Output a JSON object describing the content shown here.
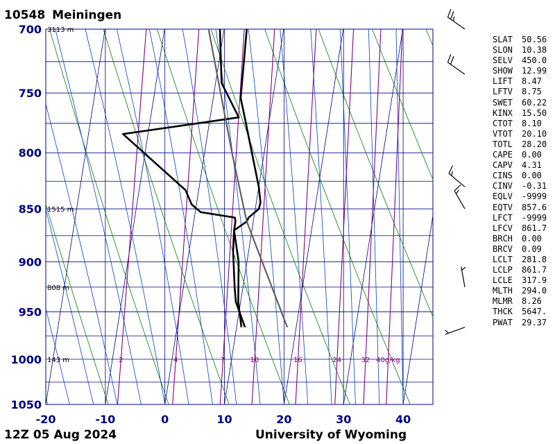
{
  "station": {
    "id": "10548",
    "name": "Meiningen"
  },
  "footer": {
    "time": "12Z 05 Aug 2024",
    "source": "University of Wyoming"
  },
  "indices": [
    {
      "k": "SLAT",
      "v": "50.56"
    },
    {
      "k": "SLON",
      "v": "10.38"
    },
    {
      "k": "SELV",
      "v": "450.0"
    },
    {
      "k": "SHOW",
      "v": "12.99"
    },
    {
      "k": "LIFT",
      "v": "8.47"
    },
    {
      "k": "LFTV",
      "v": "8.75"
    },
    {
      "k": "SWET",
      "v": "60.22"
    },
    {
      "k": "KINX",
      "v": "15.50"
    },
    {
      "k": "CTOT",
      "v": "8.10"
    },
    {
      "k": "VTOT",
      "v": "20.10"
    },
    {
      "k": "TOTL",
      "v": "28.20"
    },
    {
      "k": "CAPE",
      "v": "0.00"
    },
    {
      "k": "CAPV",
      "v": "4.31"
    },
    {
      "k": "CINS",
      "v": "0.00"
    },
    {
      "k": "CINV",
      "v": "-0.31"
    },
    {
      "k": "EQLV",
      "v": "-9999"
    },
    {
      "k": "EQTV",
      "v": "857.6"
    },
    {
      "k": "LFCT",
      "v": "-9999"
    },
    {
      "k": "LFCV",
      "v": "861.7"
    },
    {
      "k": "BRCH",
      "v": "0.00"
    },
    {
      "k": "BRCV",
      "v": "0.09"
    },
    {
      "k": "LCLT",
      "v": "281.8"
    },
    {
      "k": "LCLP",
      "v": "861.7"
    },
    {
      "k": "LCLE",
      "v": "317.9"
    },
    {
      "k": "MLTH",
      "v": "294.0"
    },
    {
      "k": "MLMR",
      "v": "8.26"
    },
    {
      "k": "THCK",
      "v": "5647."
    },
    {
      "k": "PWAT",
      "v": "29.37"
    }
  ],
  "chart_data": {
    "type": "line",
    "subtype": "skew-T log-p sounding",
    "x_ticks": [
      "-20",
      "-10",
      "0",
      "10",
      "20",
      "30",
      "40"
    ],
    "x_range": [
      -20,
      45
    ],
    "y_ticks": [
      "700",
      "750",
      "800",
      "850",
      "900",
      "950",
      "1000",
      "1050"
    ],
    "y_range": [
      700,
      1050
    ],
    "y_scale": "log",
    "height_labels": [
      {
        "p": 700,
        "text": "3113 m"
      },
      {
        "p": 850,
        "text": "1515 m"
      },
      {
        "p": 925,
        "text": "808 m"
      },
      {
        "p": 1000,
        "text": "143 m"
      }
    ],
    "mixing_ratio_labels": [
      "2",
      "4",
      "7",
      "10",
      "16",
      "24",
      "32",
      "40g/kg"
    ],
    "mixing_ratio_values": [
      2,
      4,
      7,
      10,
      16,
      24,
      32,
      40
    ],
    "colors": {
      "grid": "#000080",
      "isotherm": "#000080",
      "dry_adiabat": "#008000",
      "moist_adiabat": "#0040c0",
      "mixing_ratio": "#800080",
      "temperature": "#000000",
      "dewpoint": "#000000",
      "parcel": "#606060",
      "wind": "#000000",
      "label": "#000080"
    },
    "series": [
      {
        "role": "temperature",
        "points": [
          [
            966,
            11.4
          ],
          [
            940,
            9.2
          ],
          [
            925,
            8.6
          ],
          [
            890,
            7.4
          ],
          [
            870,
            7.0
          ],
          [
            861.7,
            8.9
          ],
          [
            858,
            9.1
          ],
          [
            850,
            10.6
          ],
          [
            844,
            10.7
          ],
          [
            830,
            10.0
          ],
          [
            770,
            5.8
          ],
          [
            754,
            4.6
          ],
          [
            700,
            3.8
          ]
        ]
      },
      {
        "role": "dewpoint",
        "points": [
          [
            966,
            10.8
          ],
          [
            940,
            9.6
          ],
          [
            900,
            8.6
          ],
          [
            870,
            7.0
          ],
          [
            861.7,
            7.0
          ],
          [
            858,
            6.8
          ],
          [
            853,
            0.9
          ],
          [
            846,
            -0.8
          ],
          [
            833,
            -2.2
          ],
          [
            784,
            -14.2
          ],
          [
            770,
            4.8
          ],
          [
            742,
            1.0
          ],
          [
            700,
            -0.7
          ]
        ]
      },
      {
        "role": "parcel",
        "points": [
          [
            966,
            18.5
          ],
          [
            861.7,
            8.9
          ],
          [
            850,
            8.1
          ],
          [
            800,
            4.6
          ],
          [
            750,
            1.1
          ],
          [
            700,
            -2.6
          ]
        ]
      }
    ],
    "wind_barbs": [
      {
        "p": 966,
        "dir": 250,
        "spd": 5
      },
      {
        "p": 925,
        "dir": 350,
        "spd": 5
      },
      {
        "p": 850,
        "dir": 330,
        "spd": 15
      },
      {
        "p": 830,
        "dir": 310,
        "spd": 15
      },
      {
        "p": 735,
        "dir": 305,
        "spd": 20
      },
      {
        "p": 700,
        "dir": 305,
        "spd": 25
      }
    ]
  }
}
